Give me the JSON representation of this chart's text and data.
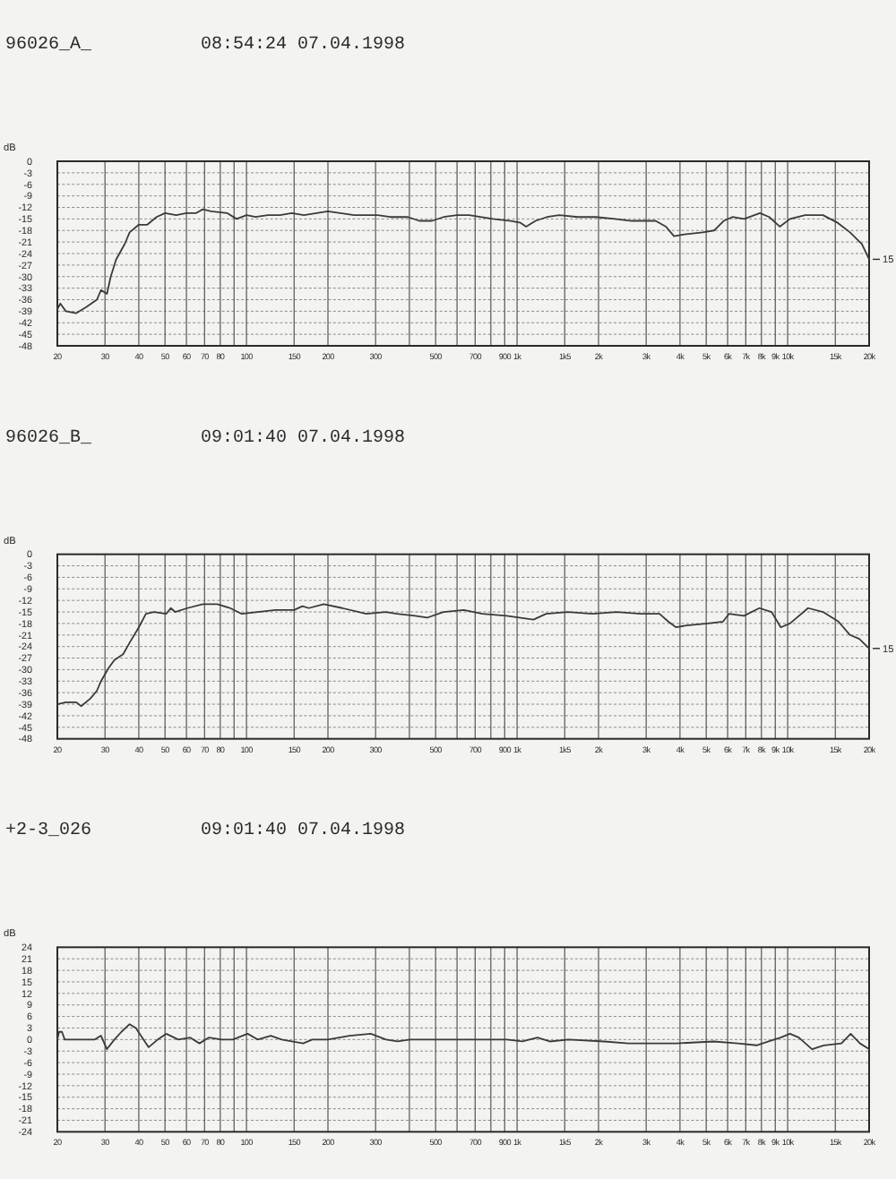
{
  "chart_data": [
    {
      "type": "line",
      "title": "96026_A_",
      "subtitle": "08:54:24 07.04.1998",
      "ylabel": "dB",
      "log": "x",
      "grid": true,
      "color": "#3a3a3a",
      "xlim": [
        20,
        20000
      ],
      "ylim": [
        -48,
        0
      ],
      "xticks": [
        20,
        30,
        40,
        50,
        60,
        70,
        80,
        {
          "value": 90,
          "label": null
        },
        100,
        150,
        200,
        300,
        {
          "value": 400,
          "label": null
        },
        500,
        {
          "value": 600,
          "label": null
        },
        700,
        {
          "value": 800,
          "label": null
        },
        900,
        {
          "value": 1000,
          "label": "1k"
        },
        {
          "value": 1500,
          "label": "1k5"
        },
        {
          "value": 2000,
          "label": "2k"
        },
        {
          "value": 3000,
          "label": "3k"
        },
        {
          "value": 4000,
          "label": "4k"
        },
        {
          "value": 5000,
          "label": "5k"
        },
        {
          "value": 6000,
          "label": "6k"
        },
        {
          "value": 7000,
          "label": "7k"
        },
        {
          "value": 8000,
          "label": "8k"
        },
        {
          "value": 9000,
          "label": "9k"
        },
        {
          "value": 10000,
          "label": "10k"
        },
        {
          "value": 15000,
          "label": "15k"
        },
        {
          "value": 20000,
          "label": "20k"
        }
      ],
      "yticks": [
        0,
        -3,
        -6,
        -9,
        -12,
        -15,
        -18,
        -21,
        -24,
        -27,
        -30,
        -33,
        -36,
        -39,
        -42,
        -45,
        -48
      ],
      "annotations": [
        "15"
      ],
      "x": [
        20,
        20.5,
        21.5,
        23.5,
        25.5,
        28,
        29,
        30.5,
        31.5,
        33,
        35.5,
        37,
        40,
        43,
        46.5,
        50,
        55,
        60,
        65,
        69,
        74,
        85,
        92,
        100,
        108,
        120,
        133,
        147,
        163,
        200,
        250,
        305,
        340,
        395,
        435,
        485,
        535,
        600,
        665,
        815,
        950,
        1030,
        1080,
        1170,
        1290,
        1430,
        1680,
        1950,
        2300,
        2650,
        3250,
        3550,
        3800,
        4150,
        4850,
        5350,
        5800,
        6250,
        6900,
        7900,
        8550,
        9350,
        10200,
        11600,
        13500,
        15300,
        17000,
        18800,
        20000
      ],
      "values": [
        -38.5,
        -37,
        -39,
        -39.5,
        -38,
        -36,
        -33.5,
        -34.5,
        -30,
        -25.5,
        -21.5,
        -18.5,
        -16.5,
        -16.5,
        -14.5,
        -13.5,
        -14,
        -13.5,
        -13.5,
        -12.5,
        -13,
        -13.5,
        -15,
        -14,
        -14.5,
        -14,
        -14,
        -13.5,
        -14,
        -13,
        -14,
        -14,
        -14.5,
        -14.5,
        -15.5,
        -15.5,
        -14.5,
        -14,
        -14,
        -15,
        -15.5,
        -16,
        -17,
        -15.5,
        -14.5,
        -14,
        -14.5,
        -14.5,
        -15,
        -15.5,
        -15.5,
        -17,
        -19.5,
        -19,
        -18.5,
        -18,
        -15.5,
        -14.5,
        -15,
        -13.5,
        -14.5,
        -17,
        -15,
        -14,
        -14,
        -16,
        -18.5,
        -21.5,
        -25.5
      ]
    },
    {
      "type": "line",
      "title": "96026_B_",
      "subtitle": "09:01:40 07.04.1998",
      "ylabel": "dB",
      "log": "x",
      "grid": true,
      "color": "#3a3a3a",
      "xlim": [
        20,
        20000
      ],
      "ylim": [
        -48,
        0
      ],
      "xticks": [
        20,
        30,
        40,
        50,
        60,
        70,
        80,
        {
          "value": 90,
          "label": null
        },
        100,
        150,
        200,
        300,
        {
          "value": 400,
          "label": null
        },
        500,
        {
          "value": 600,
          "label": null
        },
        700,
        {
          "value": 800,
          "label": null
        },
        900,
        {
          "value": 1000,
          "label": "1k"
        },
        {
          "value": 1500,
          "label": "1k5"
        },
        {
          "value": 2000,
          "label": "2k"
        },
        {
          "value": 3000,
          "label": "3k"
        },
        {
          "value": 4000,
          "label": "4k"
        },
        {
          "value": 5000,
          "label": "5k"
        },
        {
          "value": 6000,
          "label": "6k"
        },
        {
          "value": 7000,
          "label": "7k"
        },
        {
          "value": 8000,
          "label": "8k"
        },
        {
          "value": 9000,
          "label": "9k"
        },
        {
          "value": 10000,
          "label": "10k"
        },
        {
          "value": 15000,
          "label": "15k"
        },
        {
          "value": 20000,
          "label": "20k"
        }
      ],
      "yticks": [
        0,
        -3,
        -6,
        -9,
        -12,
        -15,
        -18,
        -21,
        -24,
        -27,
        -30,
        -33,
        -36,
        -39,
        -42,
        -45,
        -48
      ],
      "annotations": [
        "15"
      ],
      "x": [
        20,
        21.5,
        23.5,
        24.5,
        26.5,
        28,
        29,
        31,
        32.5,
        35,
        37,
        40,
        42.5,
        45.5,
        50.5,
        52.5,
        54.5,
        60.5,
        69,
        78,
        87,
        96,
        110,
        128,
        150,
        161,
        170,
        193,
        226,
        277,
        327,
        360,
        420,
        465,
        535,
        635,
        745,
        915,
        1150,
        1280,
        1540,
        1900,
        2330,
        2870,
        3360,
        3620,
        3870,
        4230,
        5070,
        5770,
        6070,
        6900,
        7860,
        8720,
        9430,
        10200,
        11900,
        13500,
        15400,
        17000,
        18400,
        20000
      ],
      "values": [
        -39,
        -38.5,
        -38.5,
        -39.5,
        -37.5,
        -35.5,
        -33,
        -29.5,
        -27.5,
        -26,
        -23,
        -19,
        -15.5,
        -15,
        -15.5,
        -14,
        -15,
        -14,
        -13,
        -13,
        -14,
        -15.5,
        -15,
        -14.5,
        -14.5,
        -13.5,
        -14,
        -13,
        -14,
        -15.5,
        -15,
        -15.5,
        -16,
        -16.5,
        -15,
        -14.5,
        -15.5,
        -16,
        -17,
        -15.5,
        -15,
        -15.5,
        -15,
        -15.5,
        -15.5,
        -17.5,
        -19,
        -18.5,
        -18,
        -17.5,
        -15.5,
        -16,
        -14,
        -15,
        -19,
        -18,
        -14,
        -15,
        -17.5,
        -21,
        -22,
        -24.5
      ]
    },
    {
      "type": "line",
      "title": "+2-3_026",
      "subtitle": "09:01:40 07.04.1998",
      "ylabel": "dB",
      "log": "x",
      "grid": true,
      "color": "#3a3a3a",
      "xlim": [
        20,
        20000
      ],
      "ylim": [
        -24,
        24
      ],
      "xticks": [
        20,
        30,
        40,
        50,
        60,
        70,
        80,
        {
          "value": 90,
          "label": null
        },
        100,
        150,
        200,
        300,
        {
          "value": 400,
          "label": null
        },
        500,
        {
          "value": 600,
          "label": null
        },
        700,
        {
          "value": 800,
          "label": null
        },
        900,
        {
          "value": 1000,
          "label": "1k"
        },
        {
          "value": 1500,
          "label": "1k5"
        },
        {
          "value": 2000,
          "label": "2k"
        },
        {
          "value": 3000,
          "label": "3k"
        },
        {
          "value": 4000,
          "label": "4k"
        },
        {
          "value": 5000,
          "label": "5k"
        },
        {
          "value": 6000,
          "label": "6k"
        },
        {
          "value": 7000,
          "label": "7k"
        },
        {
          "value": 8000,
          "label": "8k"
        },
        {
          "value": 9000,
          "label": "9k"
        },
        {
          "value": 10000,
          "label": "10k"
        },
        {
          "value": 15000,
          "label": "15k"
        },
        {
          "value": 20000,
          "label": "20k"
        }
      ],
      "yticks": [
        24,
        21,
        18,
        15,
        12,
        9,
        6,
        3,
        0,
        -3,
        -6,
        -9,
        -12,
        -15,
        -18,
        -21,
        -24
      ],
      "x": [
        20,
        20.3,
        20.8,
        21.3,
        23.5,
        27.5,
        29,
        30.5,
        32.5,
        34.5,
        37,
        39,
        43.5,
        47,
        50.5,
        56,
        62,
        67,
        72.5,
        81,
        89,
        101,
        110,
        123,
        135,
        162,
        175,
        200,
        240,
        288,
        328,
        362,
        402,
        535,
        604,
        748,
        917,
        1045,
        1190,
        1320,
        1550,
        2100,
        2580,
        3870,
        5330,
        6540,
        7680,
        8500,
        9420,
        10200,
        11000,
        12300,
        13600,
        15800,
        17100,
        18500,
        20000
      ],
      "values": [
        0,
        2,
        2,
        0,
        0,
        0,
        1,
        -2.5,
        0,
        2,
        4,
        3,
        -2,
        0,
        1.5,
        0,
        0.5,
        -1,
        0.5,
        0,
        0,
        1.5,
        0,
        1,
        0,
        -1,
        0,
        0,
        1,
        1.5,
        0,
        -0.5,
        0,
        0,
        0,
        0,
        0,
        -0.5,
        0.5,
        -0.5,
        0,
        -0.5,
        -1,
        -1,
        -0.5,
        -1,
        -1.5,
        -0.5,
        0.5,
        1.5,
        0.5,
        -2.5,
        -1.5,
        -1,
        1.5,
        -1,
        -2.5
      ]
    }
  ]
}
